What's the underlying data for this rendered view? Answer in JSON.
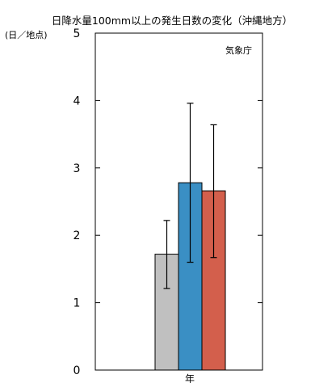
{
  "chart_data": {
    "type": "bar",
    "title": "日降水量100mm以上の発生日数の変化（沖縄地方）",
    "unit_label": "(日／地点)",
    "source_label": "気象庁",
    "xlabel": "年",
    "ylim": [
      0,
      5
    ],
    "y_ticks": [
      0,
      1,
      2,
      3,
      4,
      5
    ],
    "bars": [
      {
        "value": 1.72,
        "error_low": 1.21,
        "error_high": 2.22,
        "color": "#c0c0c0"
      },
      {
        "value": 2.78,
        "error_low": 1.6,
        "error_high": 3.96,
        "color": "#3a8fc4"
      },
      {
        "value": 2.66,
        "error_low": 1.67,
        "error_high": 3.64,
        "color": "#d35f4c"
      }
    ]
  }
}
